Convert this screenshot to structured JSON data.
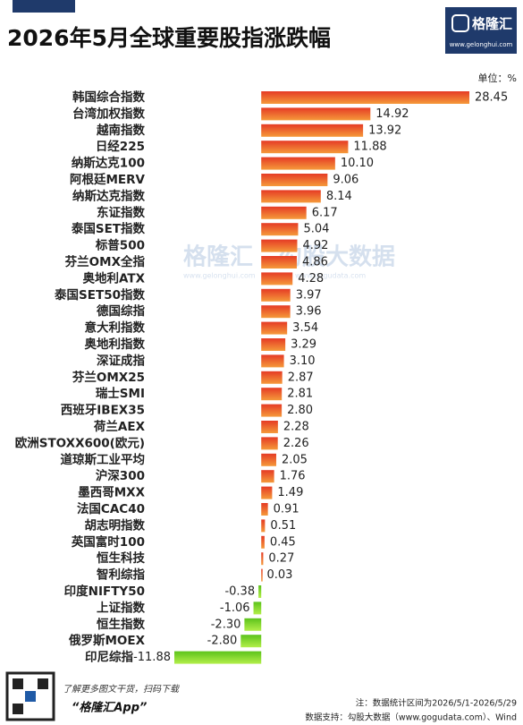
{
  "header": {
    "title": "2026年5月全球重要股指涨跌幅",
    "logo": "格隆汇",
    "logo_url": "www.gelonghui.com"
  },
  "chart_data": {
    "type": "bar",
    "orientation": "horizontal",
    "unit": "单位：%",
    "categories": [
      "韩国综合指数",
      "台湾加权指数",
      "越南指数",
      "日经225",
      "纳斯达克100",
      "阿根廷MERV",
      "纳斯达克指数",
      "东证指数",
      "泰国SET指数",
      "标普500",
      "芬兰OMX全指",
      "奥地利ATX",
      "泰国SET50指数",
      "德国综指",
      "意大利指数",
      "奥地利指数",
      "深证成指",
      "芬兰OMX25",
      "瑞士SMI",
      "西班牙IBEX35",
      "荷兰AEX",
      "欧洲STOXX600(欧元)",
      "道琼斯工业平均",
      "沪深300",
      "墨西哥MXX",
      "法国CAC40",
      "胡志明指数",
      "英国富时100",
      "恒生科技",
      "智利综指",
      "印度NIFTY50",
      "上证指数",
      "恒生指数",
      "俄罗斯MOEX",
      "印尼综指"
    ],
    "values": [
      28.45,
      14.92,
      13.92,
      11.88,
      10.1,
      9.06,
      8.14,
      6.17,
      5.04,
      4.92,
      4.86,
      4.28,
      3.97,
      3.96,
      3.54,
      3.29,
      3.1,
      2.87,
      2.81,
      2.8,
      2.28,
      2.26,
      2.05,
      1.76,
      1.49,
      0.91,
      0.51,
      0.45,
      0.27,
      0.03,
      -0.38,
      -1.06,
      -2.3,
      -2.8,
      -11.88
    ],
    "value_labels": [
      "28.45",
      "14.92",
      "13.92",
      "11.88",
      "10.10",
      "9.06",
      "8.14",
      "6.17",
      "5.04",
      "4.92",
      "4.86",
      "4.28",
      "3.97",
      "3.96",
      "3.54",
      "3.29",
      "3.10",
      "2.87",
      "2.81",
      "2.80",
      "2.28",
      "2.26",
      "2.05",
      "1.76",
      "1.49",
      "0.91",
      "0.51",
      "0.45",
      "0.27",
      "0.03",
      "-0.38",
      "-1.06",
      "-2.30",
      "-2.80",
      "-11.88"
    ],
    "positive_color": "#e9532c",
    "negative_color": "#7fd62a"
  },
  "watermarks": [
    "格隆汇",
    "www.gelonghui.com",
    "勾股大数据",
    "www.gogudata.com"
  ],
  "footer": {
    "scan": "了解更多图文干货，扫码下载",
    "app": "“格隆汇App”",
    "note": "注：数据统计区间为2026/5/1-2026/5/29",
    "source": "数据支持：勾股大数据（www.gogudata.com）、Wind"
  }
}
